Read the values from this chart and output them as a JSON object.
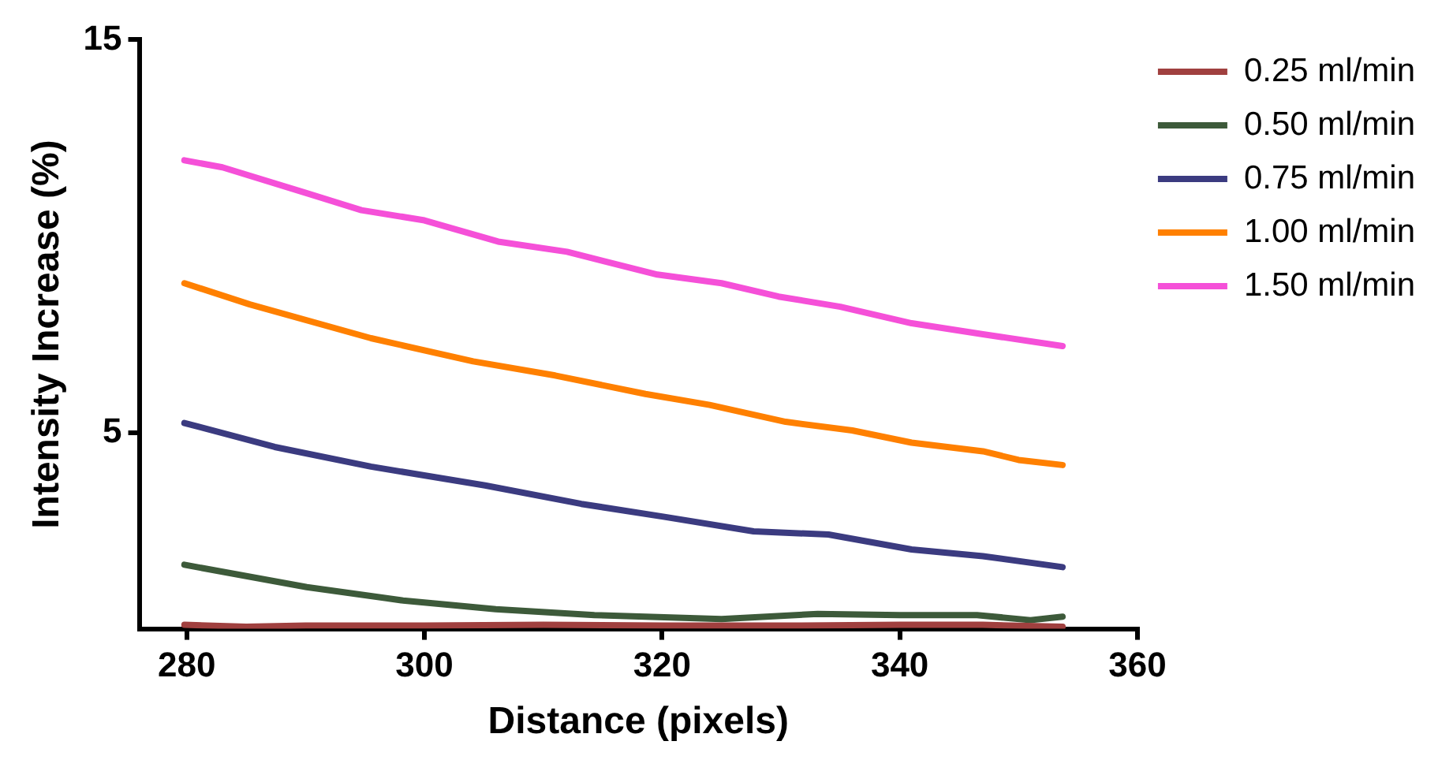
{
  "chart_data": {
    "type": "line",
    "xlabel": "Distance (pixels)",
    "ylabel": "Intensity Increase (%)",
    "xlim": [
      276,
      360
    ],
    "xticks": [
      280,
      300,
      320,
      340,
      360
    ],
    "ylim": [
      0,
      15
    ],
    "yticks": [
      5,
      15
    ],
    "grid": false,
    "legend": "right",
    "marker": "none",
    "line_style": "solid",
    "series": [
      {
        "name": "0.25 ml/min",
        "color": "#a0403f",
        "x": [
          279.8,
          285,
          290,
          300,
          310,
          320,
          330,
          340,
          347,
          353.7
        ],
        "values": [
          0.1,
          0.05,
          0.08,
          0.08,
          0.1,
          0.08,
          0.08,
          0.1,
          0.1,
          0.05
        ]
      },
      {
        "name": "0.50 ml/min",
        "color": "#3d5a3a",
        "x": [
          279.8,
          290.1,
          298.2,
          306,
          314.3,
          325,
          333.1,
          340,
          346.5,
          351,
          353.7
        ],
        "values": [
          1.63,
          1.06,
          0.72,
          0.5,
          0.35,
          0.25,
          0.38,
          0.35,
          0.35,
          0.22,
          0.31
        ]
      },
      {
        "name": "0.75 ml/min",
        "color": "#3b3b80",
        "x": [
          279.8,
          287.4,
          295.5,
          305.1,
          313.2,
          320.2,
          327.7,
          334,
          341,
          347,
          353.7
        ],
        "values": [
          5.24,
          4.63,
          4.13,
          3.65,
          3.18,
          2.85,
          2.48,
          2.4,
          2.02,
          1.85,
          1.57
        ]
      },
      {
        "name": "1.00 ml/min",
        "color": "#ff8000",
        "x": [
          279.8,
          285.3,
          295.5,
          304.1,
          311,
          318.6,
          324,
          330.4,
          336,
          341,
          347,
          350,
          353.7
        ],
        "values": [
          8.8,
          8.26,
          7.4,
          6.81,
          6.45,
          5.98,
          5.7,
          5.27,
          5.05,
          4.74,
          4.52,
          4.3,
          4.17
        ]
      },
      {
        "name": "1.50 ml/min",
        "color": "#f550d8",
        "x": [
          279.8,
          283,
          290,
          294.7,
          300,
          306.2,
          312,
          319.6,
          325,
          329.8,
          335,
          341,
          347,
          353.7
        ],
        "values": [
          11.93,
          11.75,
          11.1,
          10.66,
          10.4,
          9.86,
          9.6,
          9.02,
          8.8,
          8.46,
          8.2,
          7.78,
          7.5,
          7.2
        ]
      }
    ]
  }
}
